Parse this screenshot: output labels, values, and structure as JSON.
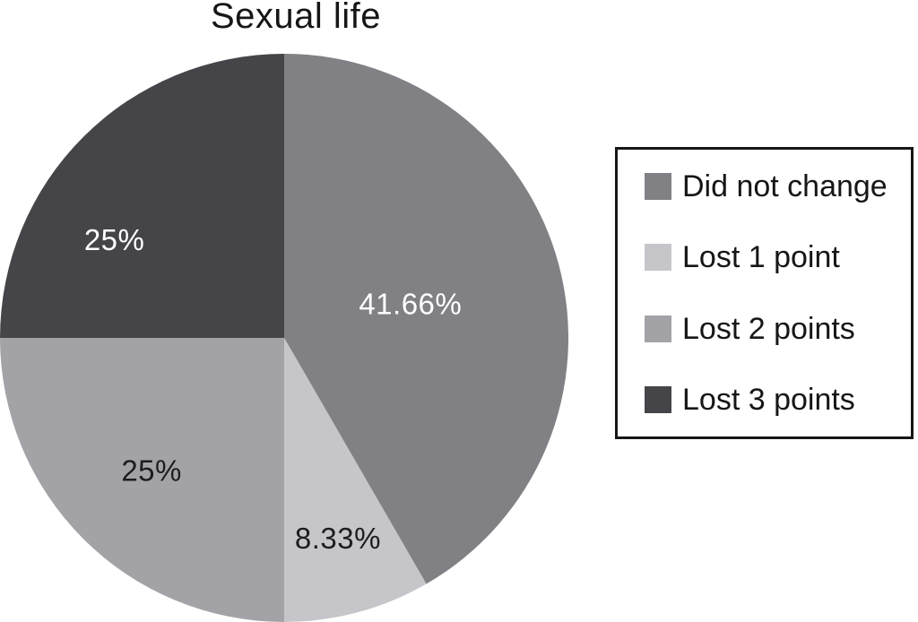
{
  "title": "Sexual life",
  "chart_data": {
    "type": "pie",
    "title": "Sexual life",
    "start_angle_deg": 0,
    "direction": "clockwise",
    "legend_position": "right",
    "slices": [
      {
        "label": "Did not change",
        "value": 41.66,
        "display": "41.66%",
        "color": "#818185",
        "label_color": "#ffffff"
      },
      {
        "label": "Lost 1 point",
        "value": 8.33,
        "display": "8.33%",
        "color": "#c6c6ca",
        "label_color": "#1d1d1f"
      },
      {
        "label": "Lost 2 points",
        "value": 25,
        "display": "25%",
        "color": "#a3a3a7",
        "label_color": "#1d1d1f"
      },
      {
        "label": "Lost 3 points",
        "value": 25,
        "display": "25%",
        "color": "#454549",
        "label_color": "#ffffff"
      }
    ]
  }
}
